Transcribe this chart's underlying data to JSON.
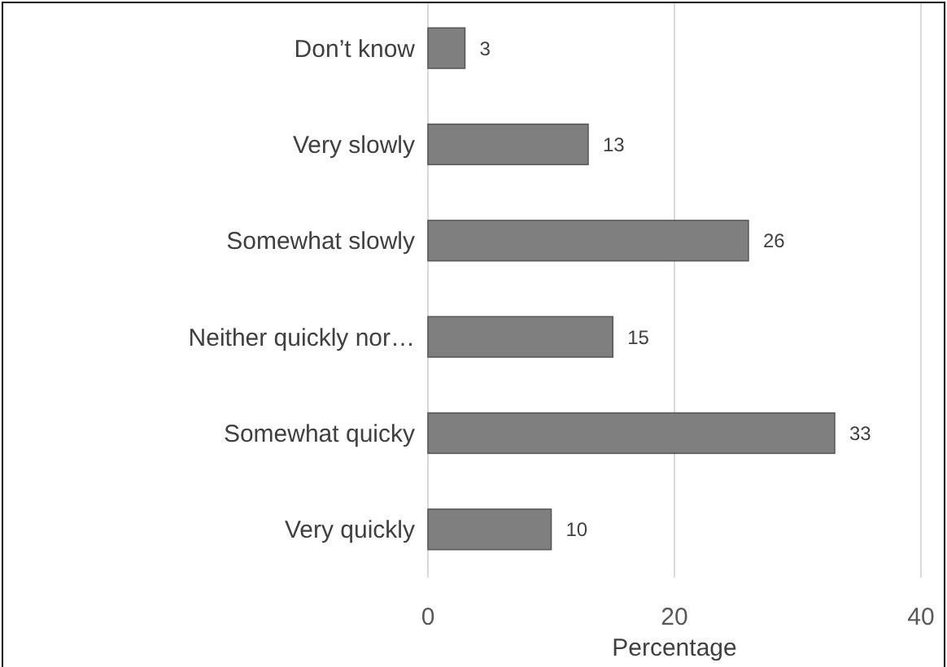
{
  "chart_data": {
    "type": "bar",
    "orientation": "horizontal",
    "xlabel": "Percentage",
    "categories": [
      "Don’t know",
      "Very slowly",
      "Somewhat slowly",
      "Neither quickly nor…",
      "Somewhat quicky",
      "Very quickly"
    ],
    "values": [
      3,
      13,
      26,
      15,
      33,
      10
    ],
    "color": "#7f7f7f",
    "xlim": [
      0,
      40
    ],
    "xticks": [
      0,
      20,
      40
    ],
    "grid": "x",
    "data_labels": true
  }
}
